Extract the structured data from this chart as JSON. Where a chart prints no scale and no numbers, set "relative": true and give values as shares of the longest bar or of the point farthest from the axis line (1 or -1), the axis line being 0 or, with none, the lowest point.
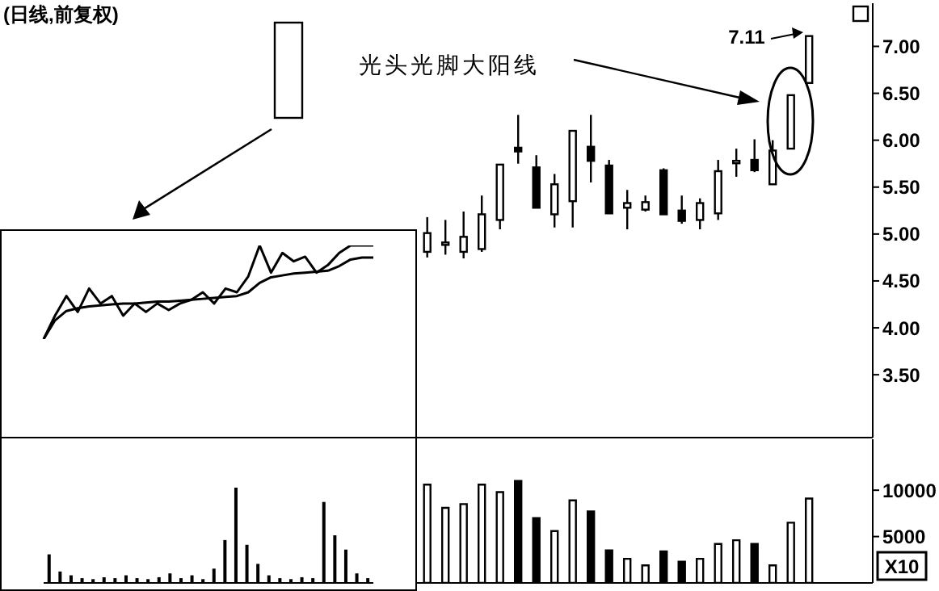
{
  "chart_data": [
    {
      "type": "candlestick",
      "title": "(日线,前复权)",
      "categories": [
        null,
        null,
        null,
        null,
        null,
        null,
        null,
        null,
        null,
        null,
        null,
        null,
        null,
        null,
        null,
        null,
        null,
        null,
        null,
        null,
        null,
        null,
        null,
        null,
        null,
        null,
        null,
        null,
        null,
        null,
        null,
        null,
        null,
        null,
        null,
        null,
        null,
        null,
        null,
        null,
        null,
        null,
        null,
        null,
        null,
        null,
        null,
        null
      ],
      "ohlc": [
        null,
        null,
        null,
        null,
        null,
        null,
        null,
        null,
        null,
        null,
        null,
        null,
        null,
        null,
        null,
        null,
        null,
        null,
        null,
        null,
        null,
        null,
        null,
        [
          4.81,
          5.18,
          4.75,
          5.01
        ],
        [
          4.9,
          5.15,
          4.78,
          4.91
        ],
        [
          4.81,
          5.24,
          4.74,
          4.97
        ],
        [
          4.84,
          5.41,
          4.81,
          5.21
        ],
        [
          5.15,
          5.74,
          5.05,
          5.74
        ],
        [
          5.92,
          6.27,
          5.75,
          5.88
        ],
        [
          5.71,
          5.84,
          5.28,
          5.28
        ],
        [
          5.21,
          5.64,
          5.07,
          5.53
        ],
        [
          5.35,
          6.1,
          5.07,
          6.1
        ],
        [
          5.93,
          6.27,
          5.55,
          5.78
        ],
        [
          5.73,
          5.79,
          5.22,
          5.22
        ],
        [
          5.28,
          5.47,
          5.05,
          5.33
        ],
        [
          5.26,
          5.41,
          5.24,
          5.34
        ],
        [
          5.68,
          5.7,
          5.21,
          5.21
        ],
        [
          5.25,
          5.41,
          5.11,
          5.14
        ],
        [
          5.15,
          5.38,
          5.05,
          5.33
        ],
        [
          5.22,
          5.79,
          5.15,
          5.67
        ],
        [
          5.76,
          5.91,
          5.61,
          5.78
        ],
        [
          5.79,
          6.01,
          5.66,
          5.68
        ],
        [
          5.53,
          6.0,
          5.53,
          5.89
        ],
        [
          5.91,
          6.48,
          5.91,
          6.48
        ],
        [
          6.61,
          7.11,
          6.61,
          7.11
        ],
        null,
        null,
        null
      ],
      "colors": [
        null,
        null,
        null,
        null,
        null,
        null,
        null,
        null,
        null,
        null,
        null,
        null,
        null,
        null,
        null,
        null,
        null,
        null,
        null,
        null,
        null,
        null,
        null,
        "#ffffff",
        "#ffffff",
        "#ffffff",
        "#ffffff",
        "#ffffff",
        "#000000",
        "#000000",
        "#ffffff",
        "#ffffff",
        "#000000",
        "#000000",
        "#ffffff",
        "#ffffff",
        "#000000",
        "#000000",
        "#ffffff",
        "#ffffff",
        "#ffffff",
        "#000000",
        "#ffffff",
        "#ffffff",
        "#ffffff",
        null,
        null,
        null
      ],
      "ylim": [
        2.83,
        7.46
      ],
      "yticks": [
        {
          "value": 3.5,
          "label": "3.50"
        },
        {
          "value": 4,
          "label": "4.00"
        },
        {
          "value": 4.5,
          "label": "4.50"
        },
        {
          "value": 5,
          "label": "5.00"
        },
        {
          "value": 5.5,
          "label": "5.50"
        },
        {
          "value": 6,
          "label": "6.00"
        },
        {
          "value": 6.5,
          "label": "6.50"
        },
        {
          "value": 7,
          "label": "7.00"
        }
      ],
      "annotations": [
        "光头光脚大阳线",
        "7.11"
      ]
    },
    {
      "type": "bar",
      "categories": [
        null,
        null,
        null,
        null,
        null,
        null,
        null,
        null,
        null,
        null,
        null,
        null,
        null,
        null,
        null,
        null,
        null,
        null,
        null,
        null,
        null,
        null,
        null,
        null,
        null,
        null,
        null,
        null,
        null,
        null,
        null,
        null,
        null,
        null,
        null,
        null,
        null,
        null,
        null,
        null,
        null,
        null,
        null,
        null,
        null,
        null,
        null,
        null
      ],
      "values": [
        null,
        null,
        null,
        null,
        null,
        null,
        null,
        null,
        null,
        null,
        null,
        null,
        null,
        null,
        null,
        null,
        null,
        null,
        null,
        null,
        null,
        null,
        null,
        10600,
        8100,
        8500,
        10600,
        9800,
        11000,
        7000,
        5600,
        8900,
        7700,
        3500,
        2600,
        1900,
        3400,
        2300,
        2600,
        4200,
        4600,
        4200,
        1900,
        6500,
        9100,
        null,
        null,
        null
      ],
      "colors": [
        null,
        null,
        null,
        null,
        null,
        null,
        null,
        null,
        null,
        null,
        null,
        null,
        null,
        null,
        null,
        null,
        null,
        null,
        null,
        null,
        null,
        null,
        null,
        "#ffffff",
        "#ffffff",
        "#ffffff",
        "#ffffff",
        "#ffffff",
        "#000000",
        "#000000",
        "#ffffff",
        "#ffffff",
        "#000000",
        "#000000",
        "#ffffff",
        "#ffffff",
        "#000000",
        "#000000",
        "#ffffff",
        "#ffffff",
        "#ffffff",
        "#000000",
        "#ffffff",
        "#ffffff",
        "#ffffff",
        null,
        null,
        null
      ],
      "ylim": [
        0,
        15500
      ],
      "yticks": [
        5000,
        10000
      ],
      "annotations": [
        "X10"
      ]
    },
    {
      "type": "line",
      "relative": true,
      "categories": [
        null,
        null,
        null,
        null,
        null,
        null,
        null,
        null,
        null,
        null,
        null,
        null,
        null,
        null,
        null,
        null,
        null,
        null,
        null,
        null,
        null,
        null,
        null,
        null,
        null,
        null,
        null,
        null,
        null,
        null
      ],
      "series": [
        {
          "color": "#000000",
          "values": [
            0,
            0.25,
            0.46,
            0.29,
            0.54,
            0.38,
            0.46,
            0.25,
            0.38,
            0.29,
            0.38,
            0.31,
            0.38,
            0.42,
            0.5,
            0.38,
            0.54,
            0.5,
            0.67,
            1.0,
            0.71,
            0.92,
            0.83,
            0.88,
            0.71,
            0.79,
            0.92,
            1.0,
            1.0,
            1.0
          ]
        },
        {
          "color": "#000000",
          "values": [
            0,
            0.2,
            0.3,
            0.33,
            0.35,
            0.36,
            0.37,
            0.38,
            0.38,
            0.39,
            0.4,
            0.4,
            0.41,
            0.42,
            0.43,
            0.44,
            0.45,
            0.46,
            0.5,
            0.6,
            0.66,
            0.68,
            0.7,
            0.71,
            0.72,
            0.73,
            0.78,
            0.85,
            0.87,
            0.87
          ]
        }
      ]
    },
    {
      "type": "bar",
      "relative": true,
      "color": "#000000",
      "categories": [
        null,
        null,
        null,
        null,
        null,
        null,
        null,
        null,
        null,
        null,
        null,
        null,
        null,
        null,
        null,
        null,
        null,
        null,
        null,
        null,
        null,
        null,
        null,
        null,
        null,
        null,
        null,
        null,
        null,
        null
      ],
      "values": [
        0.3,
        0.12,
        0.08,
        0.05,
        0.04,
        0.06,
        0.05,
        0.08,
        0.05,
        0.04,
        0.06,
        0.1,
        0.05,
        0.08,
        0.04,
        0.15,
        0.45,
        1.0,
        0.4,
        0.2,
        0.08,
        0.05,
        0.04,
        0.06,
        0.05,
        0.85,
        0.5,
        0.35,
        0.1,
        0.05
      ]
    }
  ]
}
